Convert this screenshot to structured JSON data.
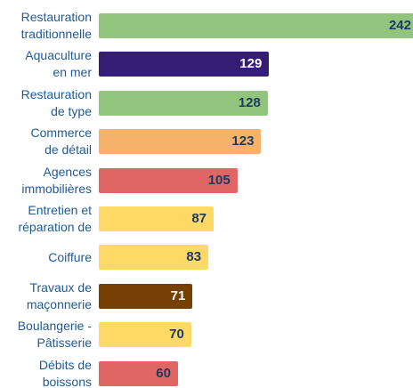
{
  "chart_data": {
    "type": "bar",
    "orientation": "horizontal",
    "categories": [
      "Restauration\ntraditionnelle",
      "Aquaculture\nen mer",
      "Restauration\nde type",
      "Commerce\nde détail",
      "Agences\nimmobilières",
      "Entretien et\nréparation de",
      "Coiffure",
      "Travaux de\nmaçonnerie",
      "Boulangerie -\nPâtisserie",
      "Débits de\nboissons"
    ],
    "values": [
      242,
      129,
      128,
      123,
      105,
      87,
      83,
      71,
      70,
      60
    ],
    "colors": [
      "#93c47d",
      "#351c75",
      "#93c47d",
      "#f6b26b",
      "#e06666",
      "#ffd966",
      "#ffd966",
      "#783f04",
      "#ffd966",
      "#e06666"
    ],
    "value_label_colors": [
      "#1c3a5e",
      "#ffffff",
      "#1c3a5e",
      "#1c3a5e",
      "#1c3a5e",
      "#1c3a5e",
      "#1c3a5e",
      "#ffffff",
      "#1c3a5e",
      "#1c3a5e"
    ],
    "category_label_color": "#1f5a96",
    "xlim": [
      0,
      238
    ]
  }
}
